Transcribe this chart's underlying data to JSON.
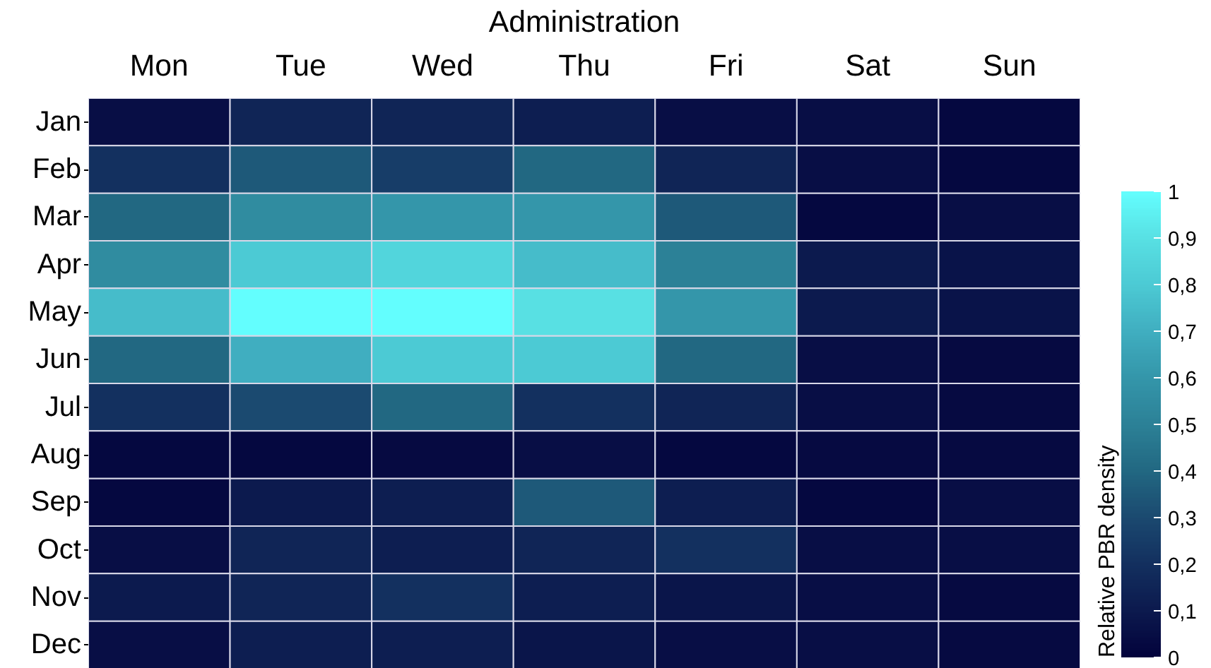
{
  "chart_data": {
    "type": "heatmap",
    "xlabel": "Administration",
    "clabel": "Relative PBR density",
    "categories": [
      "Mon",
      "Tue",
      "Wed",
      "Thu",
      "Fri",
      "Sat",
      "Sun"
    ],
    "y_categories": [
      "Jan",
      "Feb",
      "Mar",
      "Apr",
      "May",
      "Jun",
      "Jul",
      "Aug",
      "Sep",
      "Oct",
      "Nov",
      "Dec"
    ],
    "cells": [
      [
        0.05,
        0.15,
        0.15,
        0.12,
        0.05,
        0.05,
        0.02
      ],
      [
        0.2,
        0.35,
        0.25,
        0.4,
        0.15,
        0.05,
        0.02
      ],
      [
        0.4,
        0.55,
        0.6,
        0.6,
        0.35,
        0.02,
        0.05
      ],
      [
        0.55,
        0.8,
        0.85,
        0.75,
        0.5,
        0.1,
        0.07
      ],
      [
        0.75,
        1.0,
        1.0,
        0.9,
        0.6,
        0.1,
        0.07
      ],
      [
        0.4,
        0.7,
        0.8,
        0.8,
        0.4,
        0.05,
        0.03
      ],
      [
        0.2,
        0.3,
        0.4,
        0.2,
        0.15,
        0.05,
        0.03
      ],
      [
        0.02,
        0.02,
        0.03,
        0.05,
        0.02,
        0.03,
        0.03
      ],
      [
        0.02,
        0.1,
        0.12,
        0.35,
        0.12,
        0.02,
        0.05
      ],
      [
        0.05,
        0.15,
        0.12,
        0.15,
        0.2,
        0.05,
        0.05
      ],
      [
        0.1,
        0.15,
        0.2,
        0.12,
        0.08,
        0.05,
        0.03
      ],
      [
        0.05,
        0.12,
        0.12,
        0.08,
        0.05,
        0.05,
        0.03
      ]
    ],
    "clim": [
      0,
      1
    ],
    "cticks": [
      0,
      {
        "value": 0.1,
        "label": "0,1"
      },
      {
        "value": 0.2,
        "label": "0,2"
      },
      {
        "value": 0.3,
        "label": "0,3"
      },
      {
        "value": 0.4,
        "label": "0,4"
      },
      {
        "value": 0.5,
        "label": "0,5"
      },
      {
        "value": 0.6,
        "label": "0,6"
      },
      {
        "value": 0.7,
        "label": "0,7"
      },
      {
        "value": 0.8,
        "label": "0,8"
      },
      {
        "value": 0.9,
        "label": "0,9"
      },
      1
    ],
    "colors": [
      "#03033c",
      "#0c1a4e",
      "#13305f",
      "#1b4a70",
      "#226882",
      "#2c8197",
      "#3496aa",
      "#40aec0",
      "#4ccad4",
      "#58e0e3",
      "#63fefe"
    ]
  }
}
